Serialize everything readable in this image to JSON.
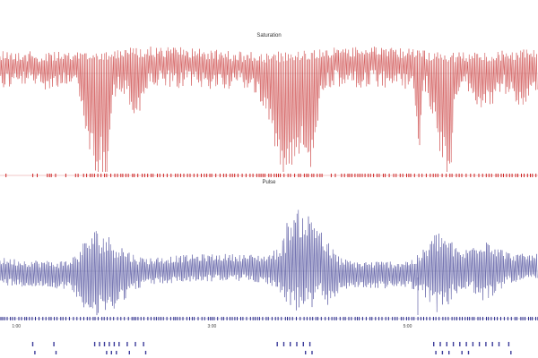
{
  "colors": {
    "saturation": "#cc4444",
    "saturation_marker": "#cc2222",
    "pulse": "#4a4a9a",
    "pulse_marker": "#2a2a8a",
    "event": "#3b3b9a",
    "reference": "#c8c8c8"
  },
  "chart_data": [
    {
      "type": "line",
      "title": "Saturation",
      "x_range_minutes": [
        0,
        330
      ],
      "grid": false,
      "legend": "none",
      "events_minutes": [
        55,
        60,
        66,
        71,
        76,
        83,
        88,
        170,
        178,
        185,
        191,
        197,
        265,
        272,
        279,
        286,
        292,
        299
      ]
    },
    {
      "type": "line",
      "title": "Pulse",
      "x_range_minutes": [
        0,
        330
      ],
      "grid": false,
      "legend": "none",
      "time_ticks": [
        "1:00",
        "3:00",
        "5:00"
      ],
      "time_tick_minutes": [
        10,
        130,
        250
      ]
    },
    {
      "type": "scatter",
      "title": "",
      "x_range_minutes": [
        0,
        330
      ],
      "events_minutes": [
        20,
        33,
        58,
        61,
        64,
        67,
        70,
        73,
        78,
        83,
        88,
        170,
        174,
        178,
        182,
        186,
        190,
        266,
        270,
        274,
        278,
        282,
        286,
        290,
        294,
        298,
        302,
        306,
        312
      ]
    }
  ]
}
